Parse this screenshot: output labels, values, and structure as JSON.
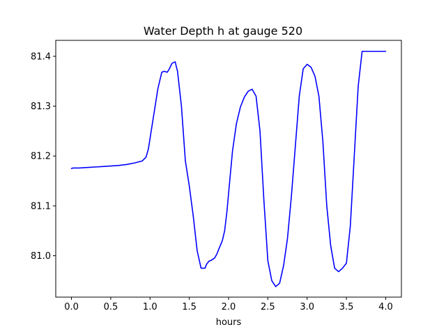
{
  "chart_data": {
    "type": "line",
    "title": "Water Depth h at gauge 520",
    "xlabel": "hours",
    "ylabel": "",
    "xlim": [
      -0.2,
      4.2
    ],
    "ylim": [
      80.917,
      81.432
    ],
    "xticks": [
      0.0,
      0.5,
      1.0,
      1.5,
      2.0,
      2.5,
      3.0,
      3.5,
      4.0
    ],
    "xtick_labels": [
      "0.0",
      "0.5",
      "1.0",
      "1.5",
      "2.0",
      "2.5",
      "3.0",
      "3.5",
      "4.0"
    ],
    "yticks": [
      81.0,
      81.1,
      81.2,
      81.3,
      81.4
    ],
    "ytick_labels": [
      "81.0",
      "81.1",
      "81.2",
      "81.3",
      "81.4"
    ],
    "grid": false,
    "series": [
      {
        "name": "h",
        "color": "#0000ff",
        "x": [
          0.0,
          0.02,
          0.05,
          0.1,
          0.2,
          0.3,
          0.4,
          0.5,
          0.6,
          0.7,
          0.8,
          0.9,
          0.95,
          0.98,
          1.0,
          1.05,
          1.1,
          1.15,
          1.18,
          1.22,
          1.25,
          1.28,
          1.32,
          1.35,
          1.4,
          1.45,
          1.5,
          1.55,
          1.6,
          1.65,
          1.7,
          1.72,
          1.75,
          1.78,
          1.82,
          1.85,
          1.88,
          1.92,
          1.95,
          1.98,
          2.0,
          2.05,
          2.1,
          2.15,
          2.2,
          2.25,
          2.3,
          2.35,
          2.4,
          2.45,
          2.5,
          2.55,
          2.6,
          2.65,
          2.7,
          2.75,
          2.8,
          2.85,
          2.9,
          2.95,
          3.0,
          3.05,
          3.1,
          3.15,
          3.2,
          3.25,
          3.3,
          3.35,
          3.4,
          3.45,
          3.5,
          3.55,
          3.6,
          3.65,
          3.7,
          3.75,
          3.8,
          3.85,
          3.9,
          3.95,
          4.0
        ],
        "y": [
          81.175,
          81.176,
          81.176,
          81.176,
          81.177,
          81.178,
          81.179,
          81.18,
          81.181,
          81.183,
          81.186,
          81.19,
          81.198,
          81.215,
          81.235,
          81.285,
          81.335,
          81.368,
          81.37,
          81.368,
          81.376,
          81.386,
          81.389,
          81.37,
          81.3,
          81.19,
          81.14,
          81.08,
          81.01,
          80.975,
          80.975,
          80.983,
          80.989,
          80.991,
          80.995,
          81.003,
          81.015,
          81.03,
          81.05,
          81.09,
          81.125,
          81.21,
          81.265,
          81.298,
          81.318,
          81.33,
          81.334,
          81.32,
          81.25,
          81.11,
          80.99,
          80.95,
          80.938,
          80.945,
          80.98,
          81.035,
          81.12,
          81.22,
          81.32,
          81.375,
          81.384,
          81.378,
          81.36,
          81.32,
          81.23,
          81.1,
          81.02,
          80.975,
          80.968,
          80.975,
          80.985,
          81.06,
          81.2,
          81.34,
          81.41,
          81.41,
          81.41,
          81.41,
          81.41,
          81.41,
          81.41
        ]
      }
    ]
  }
}
